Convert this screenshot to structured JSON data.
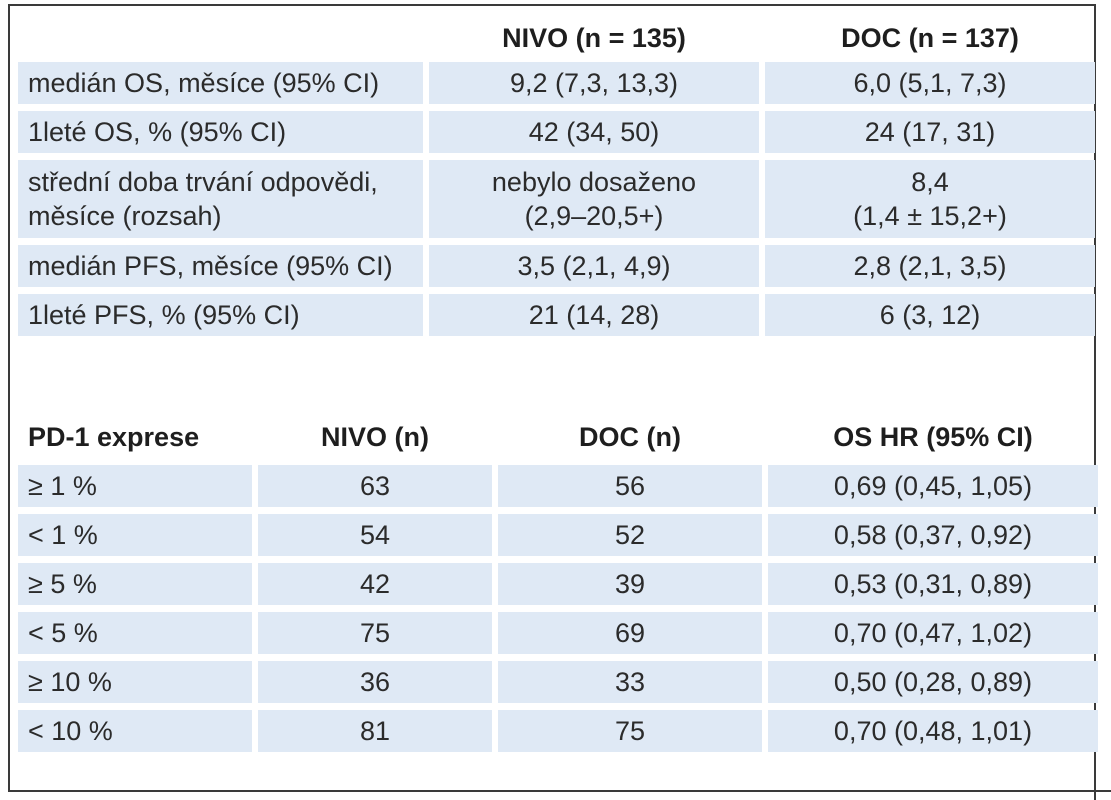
{
  "table_top": {
    "headers": [
      "",
      "NIVO (n = 135)",
      "DOC (n = 137)"
    ],
    "rows": [
      {
        "label": "medián OS, měsíce (95% CI)",
        "nivo": "9,2 (7,3, 13,3)",
        "doc": "6,0 (5,1, 7,3)"
      },
      {
        "label": "1leté OS, % (95% CI)",
        "nivo": "42 (34, 50)",
        "doc": "24 (17, 31)"
      },
      {
        "label_line1": "střední doba trvání odpovědi,",
        "label_line2": "měsíce (rozsah)",
        "nivo_line1": "nebylo dosaženo",
        "nivo_line2": "(2,9–20,5+)",
        "doc_line1": "8,4",
        "doc_line2": "(1,4 ± 15,2+)"
      },
      {
        "label": "medián PFS, měsíce (95% CI)",
        "nivo": "3,5 (2,1, 4,9)",
        "doc": "2,8 (2,1, 3,5)"
      },
      {
        "label": "1leté PFS, % (95% CI)",
        "nivo": "21 (14, 28)",
        "doc": "6 (3, 12)"
      }
    ]
  },
  "table_bottom": {
    "headers": [
      "PD-1 exprese",
      "NIVO (n)",
      "DOC (n)",
      "OS HR (95% CI)"
    ],
    "rows": [
      {
        "expr": "≥ 1 %",
        "nivo": "63",
        "doc": "56",
        "hr": "0,69 (0,45, 1,05)"
      },
      {
        "expr": "< 1 %",
        "nivo": "54",
        "doc": "52",
        "hr": "0,58 (0,37, 0,92)"
      },
      {
        "expr": "≥ 5 %",
        "nivo": "42",
        "doc": "39",
        "hr": "0,53 (0,31, 0,89)"
      },
      {
        "expr": "< 5 %",
        "nivo": "75",
        "doc": "69",
        "hr": "0,70 (0,47, 1,02)"
      },
      {
        "expr": "≥ 10 %",
        "nivo": "36",
        "doc": "33",
        "hr": "0,50 (0,28, 0,89)"
      },
      {
        "expr": "< 10 %",
        "nivo": "81",
        "doc": "75",
        "hr": "0,70 (0,48, 1,01)"
      }
    ]
  },
  "colors": {
    "row_shade": "#dfe9f5",
    "border": "#3a3a3a",
    "text": "#2b2b2b"
  }
}
